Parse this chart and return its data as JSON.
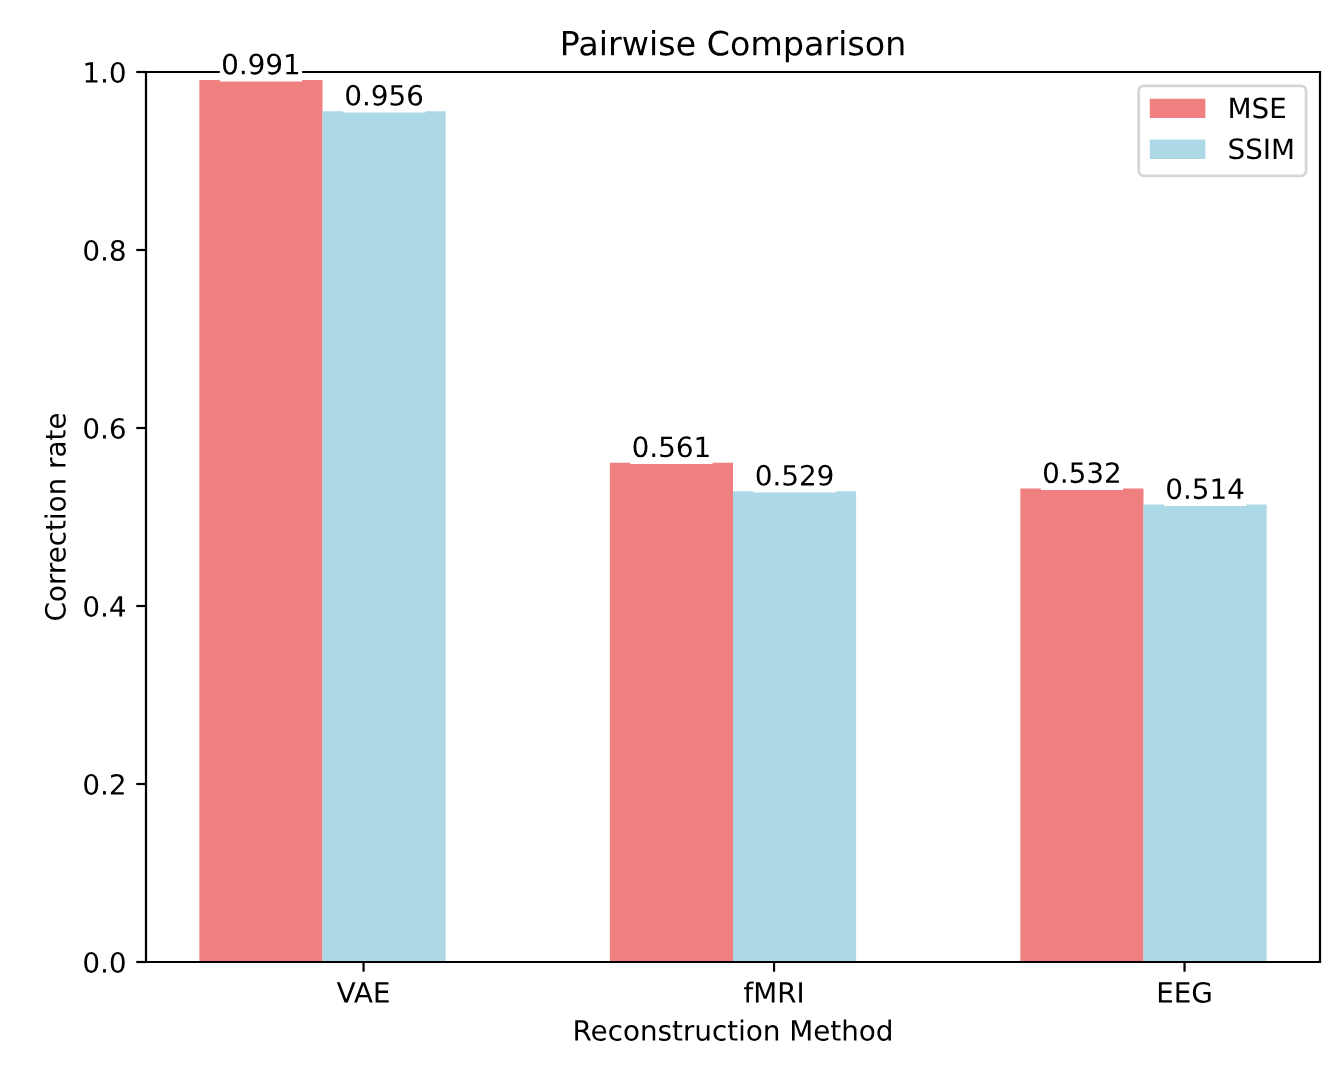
{
  "chart_data": {
    "type": "bar",
    "title": "Pairwise Comparison",
    "xlabel": "Reconstruction Method",
    "ylabel": "Correction rate",
    "categories": [
      "VAE",
      "fMRI",
      "EEG"
    ],
    "series": [
      {
        "name": "MSE",
        "color": "#f08080",
        "values": [
          0.991,
          0.561,
          0.532
        ]
      },
      {
        "name": "SSIM",
        "color": "#add8e6",
        "values": [
          0.956,
          0.529,
          0.514
        ]
      }
    ],
    "ylim": [
      0,
      1.0
    ],
    "yticks": [
      {
        "value": 0,
        "label": "0.0"
      },
      0.2,
      0.4,
      0.6,
      0.8,
      {
        "value": 1.0,
        "label": "1.0"
      }
    ],
    "data_labels": true,
    "legend": "top right",
    "grid": false
  }
}
